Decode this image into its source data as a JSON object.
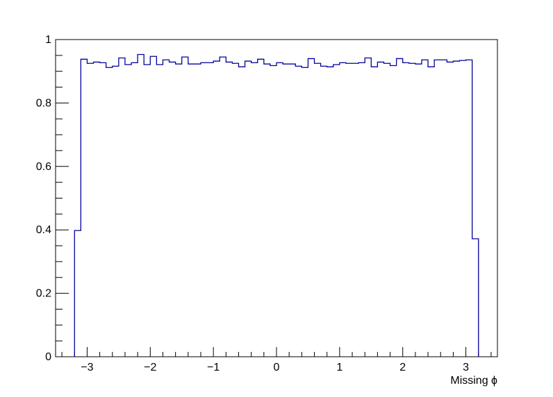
{
  "chart_data": {
    "type": "histogram",
    "title": "",
    "xlabel": "Missing ϕ",
    "ylabel": "",
    "xlim": [
      -3.5,
      3.5
    ],
    "ylim": [
      0,
      1
    ],
    "grid": false,
    "line_color": "#000099",
    "x_ticks": [
      -3,
      -2,
      -1,
      0,
      1,
      2,
      3
    ],
    "x_tick_labels": [
      "−3",
      "−2",
      "−1",
      "0",
      "1",
      "2",
      "3"
    ],
    "y_ticks": [
      0,
      0.2,
      0.4,
      0.6,
      0.8,
      1
    ],
    "y_tick_labels": [
      "0",
      "0.2",
      "0.4",
      "0.6",
      "0.8",
      "1"
    ],
    "bin_low": -3.2,
    "bin_width": 0.1,
    "values": [
      0.398,
      0.938,
      0.925,
      0.929,
      0.927,
      0.912,
      0.916,
      0.942,
      0.921,
      0.927,
      0.953,
      0.921,
      0.947,
      0.921,
      0.936,
      0.929,
      0.923,
      0.945,
      0.923,
      0.923,
      0.927,
      0.927,
      0.932,
      0.945,
      0.929,
      0.925,
      0.914,
      0.932,
      0.927,
      0.938,
      0.923,
      0.918,
      0.927,
      0.923,
      0.923,
      0.916,
      0.912,
      0.94,
      0.925,
      0.916,
      0.914,
      0.921,
      0.927,
      0.925,
      0.925,
      0.927,
      0.942,
      0.914,
      0.929,
      0.925,
      0.918,
      0.94,
      0.927,
      0.925,
      0.923,
      0.936,
      0.914,
      0.936,
      0.936,
      0.929,
      0.932,
      0.934,
      0.936,
      0.372
    ]
  }
}
